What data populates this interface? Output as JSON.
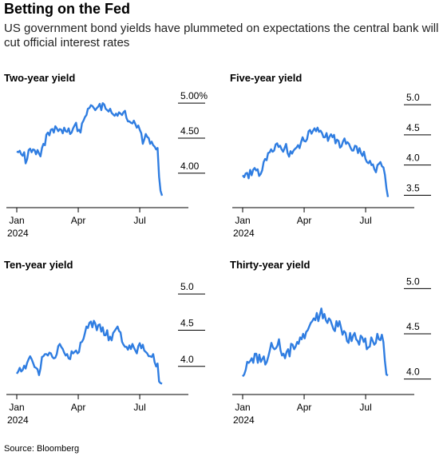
{
  "title": "Betting on the Fed",
  "subtitle": "US government bond yields have plummeted on expectations the central bank will cut official interest rates",
  "source": "Source: Bloomberg",
  "chart_data": [
    {
      "type": "line",
      "title": "Two-year yield",
      "xlabel": "",
      "ylabel": "",
      "x_ticks": [
        "Jan 2024",
        "Apr",
        "Jul"
      ],
      "y_ticks": [
        4.0,
        4.5,
        5.0
      ],
      "y_tick_labels": [
        "4.00",
        "4.50",
        "5.00%"
      ],
      "ylim": [
        3.6,
        5.15
      ],
      "color": "#2f7de1",
      "series": [
        {
          "values": [
            4.31,
            4.3,
            4.32,
            4.27,
            4.25,
            4.3,
            4.14,
            4.2,
            4.33,
            4.35,
            4.3,
            4.34,
            4.33,
            4.27,
            4.33,
            4.28,
            4.24,
            4.36,
            4.42,
            4.4,
            4.55,
            4.58,
            4.54,
            4.62,
            4.63,
            4.58,
            4.67,
            4.64,
            4.6,
            4.63,
            4.62,
            4.57,
            4.65,
            4.6,
            4.59,
            4.64,
            4.56,
            4.58,
            4.64,
            4.68,
            4.72,
            4.6,
            4.62,
            4.58,
            4.71,
            4.75,
            4.8,
            4.83,
            4.92,
            4.93,
            4.97,
            4.96,
            4.93,
            4.9,
            4.93,
            4.95,
            4.99,
            4.9,
            5.0,
            4.98,
            4.92,
            4.9,
            4.88,
            4.92,
            4.86,
            4.84,
            4.82,
            4.85,
            4.82,
            4.87,
            4.85,
            4.83,
            4.87,
            4.89,
            4.79,
            4.74,
            4.74,
            4.72,
            4.71,
            4.75,
            4.7,
            4.65,
            4.68,
            4.62,
            4.57,
            4.42,
            4.48,
            4.56,
            4.52,
            4.5,
            4.42,
            4.45,
            4.4,
            4.38,
            4.34,
            4.36,
            3.95,
            3.75,
            3.68
          ]
        }
      ]
    },
    {
      "type": "line",
      "title": "Five-year yield",
      "xlabel": "",
      "ylabel": "",
      "x_ticks": [
        "Jan 2024",
        "Apr",
        "Jul"
      ],
      "y_ticks": [
        3.5,
        4.0,
        4.5,
        5.0
      ],
      "y_tick_labels": [
        "3.5",
        "4.0",
        "4.5",
        "5.0"
      ],
      "ylim": [
        3.4,
        5.2
      ],
      "color": "#2f7de1",
      "series": [
        {
          "values": [
            3.83,
            3.8,
            3.86,
            3.87,
            3.78,
            3.92,
            3.83,
            3.92,
            3.95,
            3.91,
            3.93,
            3.82,
            3.85,
            3.91,
            4.05,
            4.1,
            4.08,
            4.2,
            4.21,
            4.26,
            4.22,
            4.24,
            4.34,
            4.36,
            4.3,
            4.32,
            4.26,
            4.22,
            4.28,
            4.35,
            4.2,
            4.14,
            4.23,
            4.19,
            4.24,
            4.27,
            4.29,
            4.33,
            4.28,
            4.38,
            4.46,
            4.4,
            4.39,
            4.43,
            4.56,
            4.58,
            4.52,
            4.57,
            4.61,
            4.56,
            4.62,
            4.55,
            4.57,
            4.53,
            4.46,
            4.46,
            4.53,
            4.4,
            4.47,
            4.51,
            4.46,
            4.5,
            4.36,
            4.42,
            4.4,
            4.29,
            4.31,
            4.39,
            4.44,
            4.35,
            4.38,
            4.35,
            4.29,
            4.24,
            4.24,
            4.32,
            4.31,
            4.2,
            4.28,
            4.2,
            4.15,
            4.22,
            4.1,
            4.05,
            4.03,
            4.07,
            4.0,
            4.01,
            3.93,
            3.88,
            4.0,
            4.02,
            4.05,
            3.98,
            3.96,
            3.84,
            3.62,
            3.47
          ]
        }
      ]
    },
    {
      "type": "line",
      "title": "Ten-year yield",
      "xlabel": "",
      "ylabel": "",
      "x_ticks": [
        "Jan 2024",
        "Apr",
        "Jul"
      ],
      "y_ticks": [
        4.0,
        4.5,
        5.0
      ],
      "y_tick_labels": [
        "4.0",
        "4.5",
        "5.0"
      ],
      "ylim": [
        3.7,
        5.2
      ],
      "color": "#2f7de1",
      "series": [
        {
          "values": [
            3.9,
            3.93,
            3.98,
            3.93,
            3.95,
            4.01,
            3.97,
            4.05,
            4.1,
            4.14,
            4.1,
            4.05,
            3.99,
            3.98,
            3.96,
            3.88,
            3.97,
            4.13,
            4.14,
            4.17,
            4.17,
            4.15,
            4.19,
            4.18,
            4.13,
            4.11,
            4.12,
            4.17,
            4.28,
            4.31,
            4.27,
            4.24,
            4.19,
            4.15,
            4.17,
            4.11,
            4.1,
            4.21,
            4.18,
            4.2,
            4.22,
            4.18,
            4.2,
            4.33,
            4.34,
            4.38,
            4.46,
            4.55,
            4.53,
            4.6,
            4.62,
            4.54,
            4.63,
            4.59,
            4.5,
            4.57,
            4.58,
            4.48,
            4.54,
            4.43,
            4.43,
            4.5,
            4.36,
            4.41,
            4.36,
            4.46,
            4.49,
            4.52,
            4.55,
            4.49,
            4.47,
            4.34,
            4.3,
            4.27,
            4.27,
            4.23,
            4.29,
            4.24,
            4.31,
            4.26,
            4.22,
            4.18,
            4.28,
            4.32,
            4.25,
            4.3,
            4.22,
            4.2,
            4.18,
            4.14,
            4.14,
            4.13,
            4.17,
            4.06,
            4.0,
            4.04,
            3.79,
            3.77,
            3.76
          ]
        }
      ]
    },
    {
      "type": "line",
      "title": "Thirty-year yield",
      "xlabel": "",
      "ylabel": "",
      "x_ticks": [
        "Jan 2024",
        "Apr",
        "Jul"
      ],
      "y_ticks": [
        4.0,
        4.5,
        5.0
      ],
      "y_tick_labels": [
        "4.0",
        "4.5",
        "5.0"
      ],
      "ylim": [
        3.9,
        5.1
      ],
      "color": "#2f7de1",
      "series": [
        {
          "values": [
            4.03,
            4.05,
            4.1,
            4.19,
            4.18,
            4.2,
            4.23,
            4.18,
            4.28,
            4.28,
            4.18,
            4.27,
            4.19,
            4.22,
            4.25,
            4.16,
            4.19,
            4.25,
            4.32,
            4.4,
            4.35,
            4.33,
            4.34,
            4.37,
            4.44,
            4.32,
            4.26,
            4.28,
            4.23,
            4.3,
            4.33,
            4.25,
            4.39,
            4.38,
            4.33,
            4.36,
            4.41,
            4.39,
            4.46,
            4.44,
            4.5,
            4.45,
            4.52,
            4.54,
            4.58,
            4.62,
            4.64,
            4.67,
            4.65,
            4.73,
            4.64,
            4.71,
            4.78,
            4.67,
            4.72,
            4.65,
            4.62,
            4.67,
            4.65,
            4.6,
            4.55,
            4.53,
            4.64,
            4.58,
            4.64,
            4.57,
            4.49,
            4.53,
            4.51,
            4.42,
            4.4,
            4.51,
            4.42,
            4.48,
            4.51,
            4.44,
            4.42,
            4.38,
            4.48,
            4.46,
            4.41,
            4.45,
            4.33,
            4.35,
            4.36,
            4.46,
            4.42,
            4.38,
            4.4,
            4.5,
            4.44,
            4.43,
            4.49,
            4.41,
            4.2,
            4.05,
            4.04
          ]
        }
      ]
    }
  ]
}
